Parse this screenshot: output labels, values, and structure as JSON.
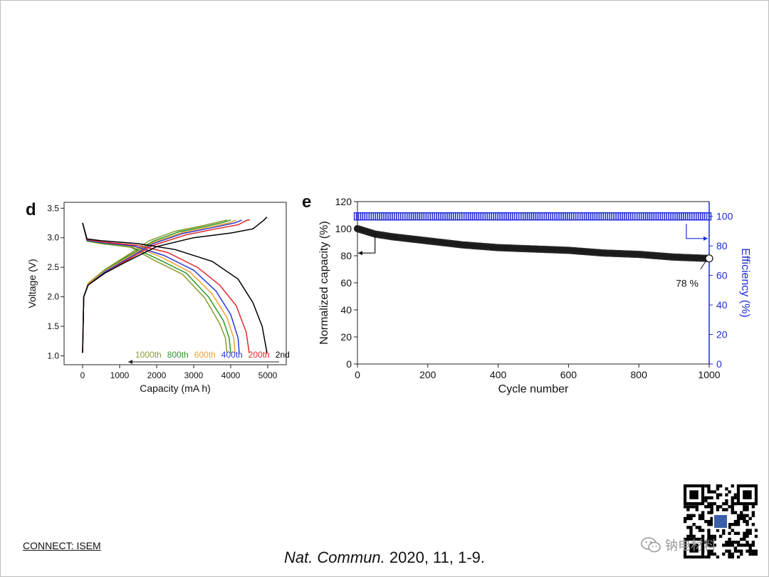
{
  "footer": {
    "left_label": "CONNECT: ISEM",
    "citation_journal": "Nat. Commun.",
    "citation_rest": " 2020, 11, 1-9."
  },
  "watermark": {
    "text": "钠电材料",
    "icon": "wechat-icon"
  },
  "colors": {
    "c2nd": "#000000",
    "c200": "#e0282c",
    "c400": "#2b3bd6",
    "c600": "#f0a030",
    "c800": "#2a9a2a",
    "c1000": "#8a9a2a",
    "efficiency": "#1f2bd8",
    "capacity": "#111111"
  },
  "chart_data": [
    {
      "panel": "d",
      "type": "line",
      "xlabel": "Capacity (mA h)",
      "ylabel": "Voltage (V)",
      "xlim": [
        -500,
        5500
      ],
      "ylim": [
        0.85,
        3.6
      ],
      "xticks": [
        0,
        1000,
        2000,
        3000,
        4000,
        5000
      ],
      "yticks": [
        1.0,
        1.5,
        2.0,
        2.5,
        3.0,
        3.5
      ],
      "legend_labels": [
        "1000th",
        "800th",
        "600th",
        "400th",
        "200th",
        "2nd"
      ],
      "series": [
        {
          "name": "2nd",
          "color": "#000000",
          "charge": [
            [
              0,
              1.05
            ],
            [
              30,
              2.0
            ],
            [
              150,
              2.2
            ],
            [
              600,
              2.4
            ],
            [
              1200,
              2.6
            ],
            [
              2000,
              2.85
            ],
            [
              3000,
              3.0
            ],
            [
              4000,
              3.08
            ],
            [
              4600,
              3.15
            ],
            [
              4900,
              3.3
            ],
            [
              4980,
              3.35
            ]
          ],
          "discharge": [
            [
              0,
              3.25
            ],
            [
              120,
              2.98
            ],
            [
              500,
              2.95
            ],
            [
              1500,
              2.9
            ],
            [
              2500,
              2.8
            ],
            [
              3500,
              2.6
            ],
            [
              4200,
              2.3
            ],
            [
              4600,
              1.9
            ],
            [
              4850,
              1.5
            ],
            [
              4980,
              1.05
            ]
          ]
        },
        {
          "name": "200th",
          "color": "#e0282c",
          "charge": [
            [
              0,
              1.05
            ],
            [
              30,
              2.0
            ],
            [
              150,
              2.2
            ],
            [
              600,
              2.4
            ],
            [
              1200,
              2.62
            ],
            [
              1900,
              2.87
            ],
            [
              2800,
              3.05
            ],
            [
              3600,
              3.15
            ],
            [
              4200,
              3.22
            ],
            [
              4450,
              3.3
            ],
            [
              4520,
              3.3
            ]
          ],
          "discharge": [
            [
              0,
              3.25
            ],
            [
              120,
              2.97
            ],
            [
              500,
              2.93
            ],
            [
              1500,
              2.87
            ],
            [
              2300,
              2.75
            ],
            [
              3100,
              2.5
            ],
            [
              3700,
              2.2
            ],
            [
              4150,
              1.85
            ],
            [
              4420,
              1.4
            ],
            [
              4500,
              1.05
            ]
          ]
        },
        {
          "name": "400th",
          "color": "#2b3bd6",
          "charge": [
            [
              0,
              1.05
            ],
            [
              30,
              2.0
            ],
            [
              150,
              2.2
            ],
            [
              600,
              2.42
            ],
            [
              1200,
              2.64
            ],
            [
              1900,
              2.9
            ],
            [
              2700,
              3.07
            ],
            [
              3500,
              3.17
            ],
            [
              4100,
              3.25
            ],
            [
              4300,
              3.3
            ]
          ],
          "discharge": [
            [
              0,
              3.25
            ],
            [
              120,
              2.96
            ],
            [
              500,
              2.92
            ],
            [
              1400,
              2.86
            ],
            [
              2200,
              2.7
            ],
            [
              3000,
              2.45
            ],
            [
              3600,
              2.1
            ],
            [
              4000,
              1.7
            ],
            [
              4200,
              1.3
            ],
            [
              4230,
              1.05
            ]
          ]
        },
        {
          "name": "600th",
          "color": "#f0a030",
          "charge": [
            [
              0,
              1.05
            ],
            [
              30,
              2.0
            ],
            [
              150,
              2.22
            ],
            [
              600,
              2.44
            ],
            [
              1200,
              2.66
            ],
            [
              1900,
              2.92
            ],
            [
              2700,
              3.09
            ],
            [
              3400,
              3.18
            ],
            [
              3950,
              3.25
            ],
            [
              4150,
              3.3
            ]
          ],
          "discharge": [
            [
              0,
              3.25
            ],
            [
              120,
              2.96
            ],
            [
              500,
              2.92
            ],
            [
              1400,
              2.85
            ],
            [
              2100,
              2.68
            ],
            [
              2900,
              2.42
            ],
            [
              3500,
              2.05
            ],
            [
              3900,
              1.65
            ],
            [
              4080,
              1.3
            ],
            [
              4120,
              1.05
            ]
          ]
        },
        {
          "name": "800th",
          "color": "#2a9a2a",
          "charge": [
            [
              0,
              1.05
            ],
            [
              30,
              2.0
            ],
            [
              150,
              2.22
            ],
            [
              600,
              2.45
            ],
            [
              1200,
              2.68
            ],
            [
              1900,
              2.94
            ],
            [
              2600,
              3.1
            ],
            [
              3300,
              3.19
            ],
            [
              3800,
              3.26
            ],
            [
              4000,
              3.3
            ]
          ],
          "discharge": [
            [
              0,
              3.25
            ],
            [
              120,
              2.95
            ],
            [
              500,
              2.91
            ],
            [
              1300,
              2.85
            ],
            [
              2000,
              2.65
            ],
            [
              2800,
              2.4
            ],
            [
              3400,
              2.0
            ],
            [
              3800,
              1.6
            ],
            [
              3960,
              1.3
            ],
            [
              4000,
              1.05
            ]
          ]
        },
        {
          "name": "1000th",
          "color": "#8a9a2a",
          "charge": [
            [
              0,
              1.05
            ],
            [
              30,
              2.0
            ],
            [
              150,
              2.23
            ],
            [
              600,
              2.46
            ],
            [
              1200,
              2.7
            ],
            [
              1800,
              2.95
            ],
            [
              2500,
              3.11
            ],
            [
              3200,
              3.2
            ],
            [
              3700,
              3.27
            ],
            [
              3900,
              3.3
            ]
          ],
          "discharge": [
            [
              0,
              3.25
            ],
            [
              120,
              2.94
            ],
            [
              500,
              2.9
            ],
            [
              1300,
              2.84
            ],
            [
              1900,
              2.63
            ],
            [
              2700,
              2.38
            ],
            [
              3300,
              1.98
            ],
            [
              3700,
              1.55
            ],
            [
              3860,
              1.3
            ],
            [
              3900,
              1.05
            ]
          ]
        }
      ]
    },
    {
      "panel": "e",
      "type": "scatter",
      "xlabel": "Cycle number",
      "ylabel": "Normalized capacity (%)",
      "y2label": "Efficiency (%)",
      "xlim": [
        0,
        1000
      ],
      "ylim": [
        0,
        120
      ],
      "y2lim": [
        0,
        110
      ],
      "xticks": [
        0,
        200,
        400,
        600,
        800,
        1000
      ],
      "yticks": [
        0,
        20,
        40,
        60,
        80,
        100,
        120
      ],
      "y2ticks": [
        0,
        20,
        40,
        60,
        80,
        100
      ],
      "annotation": "78 %",
      "capacity_curve": [
        [
          0,
          100
        ],
        [
          50,
          96
        ],
        [
          100,
          94
        ],
        [
          200,
          91
        ],
        [
          300,
          88
        ],
        [
          400,
          86
        ],
        [
          500,
          85
        ],
        [
          600,
          84
        ],
        [
          700,
          82
        ],
        [
          800,
          81
        ],
        [
          900,
          79
        ],
        [
          1000,
          78
        ]
      ],
      "efficiency_value": 100
    }
  ]
}
